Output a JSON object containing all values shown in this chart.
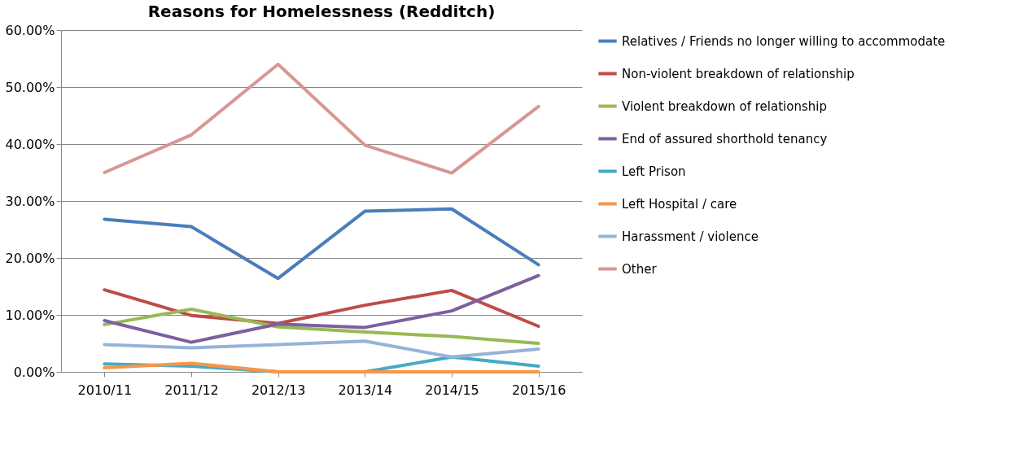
{
  "chart_data": {
    "type": "line",
    "title": "Reasons for Homelessness (Redditch)",
    "categories": [
      "2010/11",
      "2011/12",
      "2012/13",
      "2013/14",
      "2014/15",
      "2015/16"
    ],
    "series": [
      {
        "name": "Relatives / Friends no longer willing to accommodate",
        "color": "#4a7ebb",
        "values": [
          26.8,
          25.5,
          16.4,
          28.2,
          28.6,
          18.8
        ]
      },
      {
        "name": "Non-violent breakdown of relationship",
        "color": "#be4b48",
        "values": [
          14.4,
          9.9,
          8.5,
          11.7,
          14.3,
          8.0
        ]
      },
      {
        "name": "Violent breakdown of relationship",
        "color": "#98b954",
        "values": [
          8.3,
          11.0,
          7.9,
          7.0,
          6.2,
          5.0
        ]
      },
      {
        "name": "End of assured shorthold tenancy",
        "color": "#7d5fa0",
        "values": [
          9.0,
          5.2,
          8.4,
          7.8,
          10.7,
          16.9
        ]
      },
      {
        "name": "Left Prison",
        "color": "#46aac5",
        "values": [
          1.4,
          1.0,
          0,
          0,
          2.6,
          1.0
        ]
      },
      {
        "name": "Left Hospital / care",
        "color": "#f79646",
        "values": [
          0.7,
          1.5,
          0,
          0,
          0,
          0
        ]
      },
      {
        "name": "Harassment / violence",
        "color": "#95b3d7",
        "values": [
          4.8,
          4.2,
          4.8,
          5.4,
          2.6,
          4.0
        ]
      },
      {
        "name": "Other",
        "color": "#d99694",
        "values": [
          35.0,
          41.6,
          54.0,
          39.8,
          34.9,
          46.6
        ]
      }
    ],
    "ylim": [
      0,
      60
    ],
    "yticks": [
      {
        "value": 0,
        "label": "0.00%"
      },
      {
        "value": 10,
        "label": "10.00%"
      },
      {
        "value": 20,
        "label": "20.00%"
      },
      {
        "value": 30,
        "label": "30.00%"
      },
      {
        "value": 40,
        "label": "40.00%"
      },
      {
        "value": 50,
        "label": "50.00%"
      },
      {
        "value": 60,
        "label": "60.00%"
      }
    ],
    "grid": "y",
    "legend": "right",
    "marker": "none",
    "line_style": "solid"
  }
}
